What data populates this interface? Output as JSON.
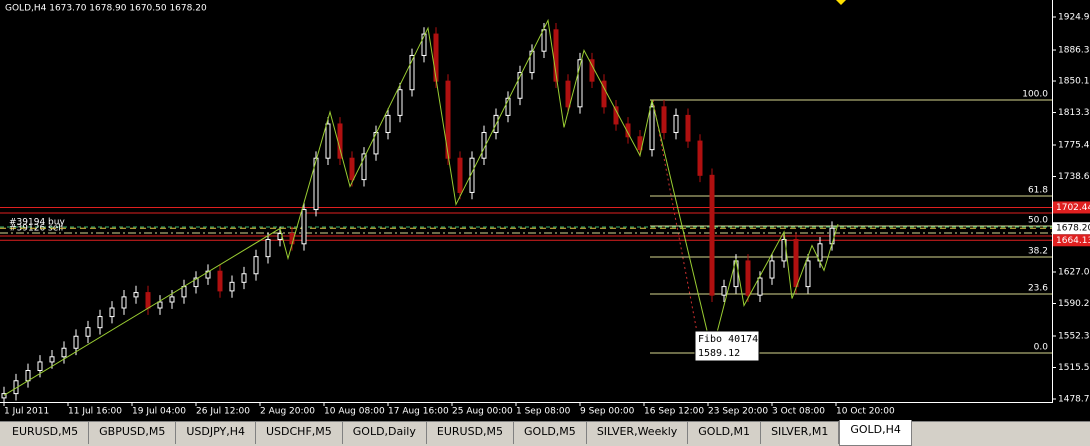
{
  "chart_data": {
    "type": "candlestick",
    "title": "GOLD,H4  1673.70 1678.90 1670.50 1678.20",
    "xlim": [
      -2,
      524
    ],
    "ylim": [
      1475.2,
      1944.8
    ],
    "xticks": [
      {
        "value": 0,
        "label": "1 Jul 2011"
      },
      {
        "value": 32,
        "label": "11 Jul 16:00"
      },
      {
        "value": 64,
        "label": "19 Jul 04:00"
      },
      {
        "value": 96,
        "label": "26 Jul 12:00"
      },
      {
        "value": 128,
        "label": "2 Aug 20:00"
      },
      {
        "value": 160,
        "label": "10 Aug 08:00"
      },
      {
        "value": 192,
        "label": "17 Aug 16:00"
      },
      {
        "value": 224,
        "label": "25 Aug 00:00"
      },
      {
        "value": 256,
        "label": "1 Sep 08:00"
      },
      {
        "value": 288,
        "label": "9 Sep 00:00"
      },
      {
        "value": 320,
        "label": "16 Sep 12:00"
      },
      {
        "value": 352,
        "label": "23 Sep 20:00"
      },
      {
        "value": 384,
        "label": "3 Oct 08:00"
      },
      {
        "value": 416,
        "label": "10 Oct 20:00"
      }
    ],
    "yticks": [
      {
        "value": 1924.95,
        "label": "1924.95"
      },
      {
        "value": 1886.35,
        "label": "1886.35"
      },
      {
        "value": 1850.15,
        "label": "1850.15"
      },
      {
        "value": 1813.35,
        "label": "1813.35"
      },
      {
        "value": 1775.4,
        "label": "1775.40"
      },
      {
        "value": 1738.6,
        "label": "1738.60"
      },
      {
        "value": 1627.05,
        "label": "1627.05"
      },
      {
        "value": 1590.25,
        "label": "1590.25"
      },
      {
        "value": 1552.3,
        "label": "1552.30"
      },
      {
        "value": 1515.5,
        "label": "1515.50"
      },
      {
        "value": 1478.7,
        "label": "1478.70"
      }
    ],
    "up_color": "#ffffff",
    "down_color": "#b01010",
    "x": [
      0,
      6,
      12,
      18,
      24,
      30,
      36,
      42,
      48,
      54,
      60,
      66,
      72,
      78,
      84,
      90,
      96,
      102,
      108,
      114,
      120,
      126,
      132,
      138,
      144,
      150,
      156,
      162,
      168,
      174,
      180,
      186,
      192,
      198,
      204,
      210,
      216,
      222,
      228,
      234,
      240,
      246,
      252,
      258,
      264,
      270,
      276,
      282,
      288,
      294,
      300,
      306,
      312,
      318,
      324,
      330,
      336,
      342,
      348,
      354,
      360,
      366,
      372,
      378,
      384,
      390,
      396,
      402,
      408,
      414
    ],
    "open": [
      1480,
      1485,
      1500,
      1512,
      1522,
      1528,
      1538,
      1552,
      1562,
      1575,
      1585,
      1598,
      1603,
      1585,
      1592,
      1598,
      1610,
      1620,
      1628,
      1605,
      1615,
      1625,
      1645,
      1665,
      1672,
      1660,
      1700,
      1760,
      1800,
      1760,
      1735,
      1765,
      1790,
      1810,
      1840,
      1880,
      1905,
      1850,
      1760,
      1720,
      1760,
      1790,
      1810,
      1830,
      1860,
      1885,
      1910,
      1850,
      1820,
      1875,
      1850,
      1820,
      1800,
      1785,
      1770,
      1820,
      1790,
      1810,
      1780,
      1740,
      1600,
      1610,
      1640,
      1600,
      1620,
      1640,
      1665,
      1610,
      1640,
      1660
    ],
    "high": [
      1493,
      1508,
      1520,
      1530,
      1536,
      1546,
      1560,
      1570,
      1583,
      1593,
      1606,
      1611,
      1611,
      1600,
      1606,
      1618,
      1628,
      1636,
      1636,
      1623,
      1633,
      1653,
      1673,
      1680,
      1680,
      1708,
      1768,
      1808,
      1808,
      1768,
      1773,
      1798,
      1818,
      1848,
      1888,
      1913,
      1913,
      1858,
      1768,
      1768,
      1798,
      1818,
      1838,
      1868,
      1893,
      1918,
      1918,
      1858,
      1883,
      1883,
      1858,
      1828,
      1808,
      1793,
      1828,
      1828,
      1818,
      1818,
      1788,
      1748,
      1618,
      1648,
      1648,
      1628,
      1648,
      1673,
      1673,
      1648,
      1668,
      1686.2
    ],
    "low": [
      1472,
      1477,
      1492,
      1504,
      1514,
      1520,
      1530,
      1544,
      1554,
      1567,
      1577,
      1590,
      1577,
      1577,
      1584,
      1590,
      1602,
      1612,
      1597,
      1597,
      1607,
      1617,
      1637,
      1657,
      1652,
      1652,
      1692,
      1752,
      1752,
      1727,
      1727,
      1757,
      1782,
      1802,
      1832,
      1872,
      1842,
      1752,
      1712,
      1712,
      1752,
      1782,
      1802,
      1822,
      1852,
      1877,
      1842,
      1812,
      1812,
      1842,
      1812,
      1792,
      1777,
      1762,
      1762,
      1782,
      1782,
      1772,
      1732,
      1592,
      1592,
      1602,
      1592,
      1592,
      1612,
      1632,
      1602,
      1602,
      1632,
      1652
    ],
    "close": [
      1485,
      1500,
      1512,
      1522,
      1528,
      1538,
      1552,
      1562,
      1575,
      1585,
      1598,
      1603,
      1585,
      1592,
      1598,
      1610,
      1620,
      1628,
      1605,
      1615,
      1625,
      1645,
      1665,
      1672,
      1660,
      1700,
      1760,
      1800,
      1760,
      1735,
      1765,
      1790,
      1810,
      1840,
      1880,
      1905,
      1850,
      1760,
      1720,
      1760,
      1790,
      1810,
      1830,
      1860,
      1885,
      1910,
      1850,
      1820,
      1875,
      1850,
      1820,
      1800,
      1785,
      1770,
      1820,
      1790,
      1810,
      1780,
      1740,
      1600,
      1610,
      1640,
      1600,
      1620,
      1640,
      1665,
      1610,
      1640,
      1660,
      1678.2
    ],
    "zigzag": {
      "color": "#9acd32",
      "x": [
        0,
        138,
        142,
        163,
        173,
        212,
        226,
        272,
        280,
        290,
        318,
        324,
        354,
        366,
        370,
        390,
        394,
        404,
        410,
        417
      ],
      "values": [
        1483,
        1678,
        1643,
        1814,
        1727,
        1912,
        1706,
        1921,
        1796,
        1886,
        1763,
        1828,
        1534,
        1642,
        1588,
        1674,
        1596,
        1658,
        1629,
        1683
      ]
    },
    "fibo": {
      "color": "#d8d890",
      "x": 323,
      "label": "Fibo 40174",
      "price_label": "1589.12",
      "levels": [
        {
          "value": 1828,
          "label": "100.0"
        },
        {
          "value": 1715.8,
          "label": "61.8"
        },
        {
          "value": 1680.8,
          "label": "50.0"
        },
        {
          "value": 1644.6,
          "label": "38.2"
        },
        {
          "value": 1601.4,
          "label": "23.6"
        },
        {
          "value": 1532.4,
          "label": "0.0"
        }
      ]
    },
    "red_levels": [
      {
        "value": 1702.44,
        "label": "1702.44"
      },
      1696,
      1669.1,
      {
        "value": 1664.13,
        "label": "1664.13"
      }
    ],
    "orders": [
      {
        "value": 1679.6,
        "label": "#39194 buy",
        "color": "#3cb371"
      },
      {
        "value": 1672.6,
        "label": "#39126 sell",
        "color": "#d8d890"
      }
    ],
    "last_price": {
      "value": 1678.2,
      "label": "1678.20",
      "color": "#e8c840"
    }
  },
  "tabs": [
    "EURUSD,M5",
    "GBPUSD,M5",
    "USDJPY,H4",
    "USDCHF,M5",
    "GOLD,Daily",
    "EURUSD,M5",
    "GOLD,M5",
    "SILVER,Weekly",
    "GOLD,M1",
    "SILVER,M1",
    "GOLD,H4"
  ],
  "active_tab": 10
}
